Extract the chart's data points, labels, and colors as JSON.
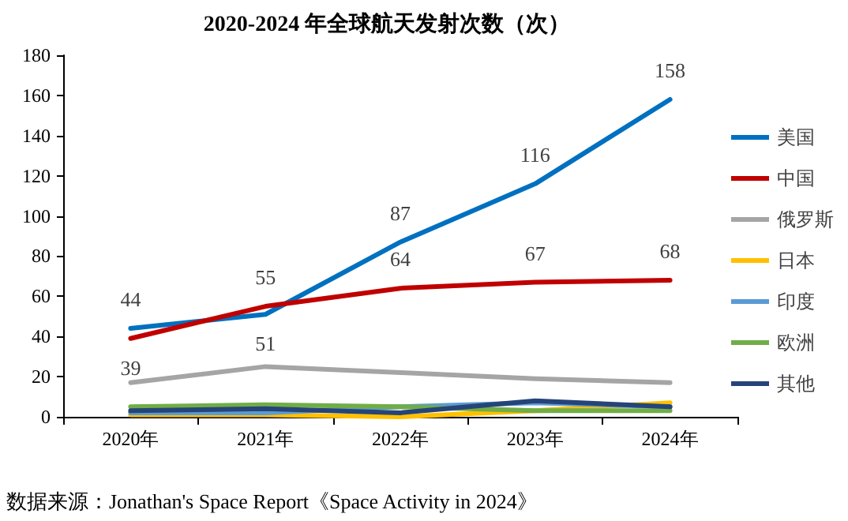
{
  "chart_data": {
    "type": "line",
    "title": "2020-2024 年全球航天发射次数（次）",
    "categories": [
      "2020年",
      "2021年",
      "2022年",
      "2023年",
      "2024年"
    ],
    "series": [
      {
        "name": "美国",
        "color": "#0070c0",
        "values": [
          44,
          51,
          87,
          116,
          158
        ],
        "value_labels": [
          "44",
          "51",
          "87",
          "116",
          "158"
        ]
      },
      {
        "name": "中国",
        "color": "#c00000",
        "values": [
          39,
          55,
          64,
          67,
          68
        ],
        "value_labels": [
          "39",
          "55",
          "64",
          "67",
          "68"
        ]
      },
      {
        "name": "俄罗斯",
        "color": "#a5a5a5",
        "values": [
          17,
          25,
          22,
          19,
          17
        ]
      },
      {
        "name": "日本",
        "color": "#ffc000",
        "values": [
          1,
          1,
          0,
          3,
          7
        ]
      },
      {
        "name": "印度",
        "color": "#5b9bd5",
        "values": [
          2,
          2,
          5,
          7,
          5
        ]
      },
      {
        "name": "欧洲",
        "color": "#70ad47",
        "values": [
          5,
          6,
          5,
          3,
          3
        ]
      },
      {
        "name": "其他",
        "color": "#264478",
        "values": [
          3,
          4,
          2,
          8,
          5
        ]
      }
    ],
    "ylim": [
      0,
      180
    ],
    "yticks": [
      0,
      20,
      40,
      60,
      80,
      100,
      120,
      140,
      160,
      180
    ],
    "grid": false,
    "legend": "right",
    "marker": "none",
    "line_style": "solid",
    "annotations": [
      "数据来源：Jonathan's Space Report《Space Activity in 2024》"
    ]
  }
}
